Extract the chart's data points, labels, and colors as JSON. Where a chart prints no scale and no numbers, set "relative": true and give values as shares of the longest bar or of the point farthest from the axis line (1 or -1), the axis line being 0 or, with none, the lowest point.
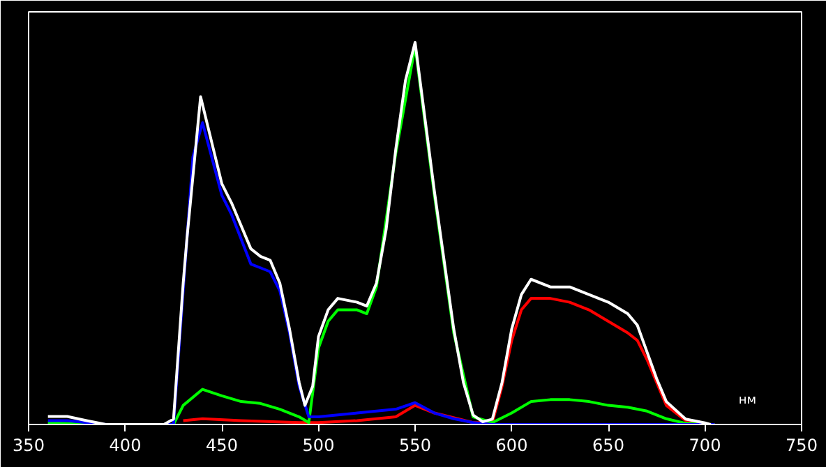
{
  "chart_data": {
    "type": "line",
    "relative": true,
    "xlabel": "нм",
    "xlim": [
      350,
      750
    ],
    "xticks": [
      350,
      400,
      450,
      500,
      550,
      600,
      650,
      700,
      750
    ],
    "grid": false,
    "marker": "none",
    "line_style": "solid",
    "series": [
      {
        "color": "#ff0000",
        "x": [
          430,
          440,
          460,
          490,
          500,
          520,
          540,
          550,
          560,
          580,
          590,
          595,
          600,
          605,
          610,
          620,
          630,
          640,
          650,
          660,
          665,
          670,
          675,
          680,
          690,
          700,
          705
        ],
        "values": [
          0.01,
          0.015,
          0.01,
          0.005,
          0.005,
          0.01,
          0.02,
          0.05,
          0.03,
          0.005,
          0.005,
          0.1,
          0.22,
          0.3,
          0.33,
          0.33,
          0.32,
          0.3,
          0.27,
          0.24,
          0.22,
          0.17,
          0.11,
          0.05,
          0.01,
          0,
          0
        ]
      },
      {
        "color": "#00ff00",
        "x": [
          360,
          380,
          400,
          425,
          430,
          440,
          450,
          460,
          470,
          480,
          490,
          495,
          500,
          505,
          510,
          520,
          525,
          530,
          540,
          550,
          560,
          570,
          580,
          590,
          600,
          610,
          620,
          630,
          640,
          650,
          660,
          670,
          680,
          690,
          700,
          705
        ],
        "values": [
          0.005,
          0,
          0,
          0,
          0.05,
          0.092,
          0.075,
          0.06,
          0.055,
          0.04,
          0.02,
          0.005,
          0.2,
          0.27,
          0.3,
          0.3,
          0.29,
          0.36,
          0.71,
          0.99,
          0.6,
          0.24,
          0.02,
          0.005,
          0.03,
          0.06,
          0.065,
          0.065,
          0.06,
          0.05,
          0.045,
          0.035,
          0.015,
          0.003,
          0,
          0
        ]
      },
      {
        "color": "#0000ff",
        "x": [
          360,
          370,
          380,
          390,
          400,
          425,
          430,
          435,
          440,
          450,
          455,
          465,
          470,
          475,
          480,
          485,
          490,
          495,
          500,
          520,
          540,
          550,
          560,
          570,
          580,
          590,
          700,
          705
        ],
        "values": [
          0.01,
          0.01,
          0.005,
          0,
          0,
          0,
          0.35,
          0.7,
          0.79,
          0.6,
          0.55,
          0.42,
          0.41,
          0.4,
          0.35,
          0.24,
          0.1,
          0.02,
          0.02,
          0.03,
          0.04,
          0.057,
          0.03,
          0.015,
          0.005,
          0,
          0,
          0
        ]
      },
      {
        "color": "#ffffff",
        "x": [
          360,
          370,
          380,
          390,
          400,
          420,
          425,
          430,
          432,
          439,
          450,
          455,
          465,
          470,
          475,
          480,
          485,
          490,
          493,
          497,
          500,
          505,
          510,
          520,
          525,
          530,
          535,
          540,
          545,
          550,
          560,
          565,
          570,
          575,
          580,
          585,
          590,
          595,
          600,
          605,
          610,
          620,
          630,
          640,
          650,
          660,
          665,
          670,
          675,
          680,
          690,
          700,
          703
        ],
        "values": [
          0.021,
          0.021,
          0.01,
          0,
          0,
          0,
          0.014,
          0.37,
          0.49,
          0.858,
          0.63,
          0.58,
          0.46,
          0.44,
          0.43,
          0.37,
          0.25,
          0.11,
          0.05,
          0.1,
          0.23,
          0.3,
          0.33,
          0.32,
          0.31,
          0.37,
          0.51,
          0.72,
          0.9,
          1,
          0.61,
          0.43,
          0.25,
          0.11,
          0.025,
          0.007,
          0.014,
          0.11,
          0.25,
          0.34,
          0.38,
          0.36,
          0.36,
          0.34,
          0.32,
          0.29,
          0.26,
          0.19,
          0.12,
          0.06,
          0.014,
          0.004,
          0
        ]
      }
    ]
  }
}
